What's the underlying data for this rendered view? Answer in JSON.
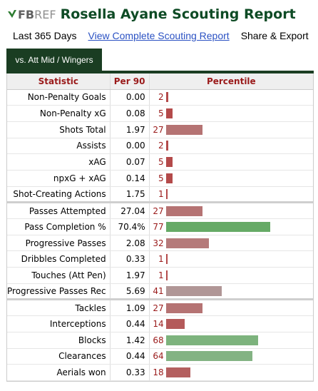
{
  "header": {
    "logo_fb": "FB",
    "logo_ref": "REF",
    "title": "Rosella Ayane Scouting Report"
  },
  "subnav": {
    "period": "Last 365 Days",
    "link": "View Complete Scouting Report",
    "share": "Share & Export"
  },
  "tab": {
    "label": "vs. Att Mid / Wingers"
  },
  "table": {
    "headers": {
      "statistic": "Statistic",
      "per90": "Per 90",
      "percentile": "Percentile"
    },
    "colors": {
      "high": "#7ab37a",
      "mid": "#b08a8a",
      "low": "#b05a5a"
    },
    "rows": [
      {
        "statistic": "Non-Penalty Goals",
        "per90": "0.00",
        "percentile": 2,
        "color": "#b44a4a",
        "group_end": false
      },
      {
        "statistic": "Non-Penalty xG",
        "per90": "0.08",
        "percentile": 5,
        "color": "#b44a4a",
        "group_end": false
      },
      {
        "statistic": "Shots Total",
        "per90": "1.97",
        "percentile": 27,
        "color": "#b57373",
        "group_end": false
      },
      {
        "statistic": "Assists",
        "per90": "0.00",
        "percentile": 2,
        "color": "#b44a4a",
        "group_end": false
      },
      {
        "statistic": "xAG",
        "per90": "0.07",
        "percentile": 5,
        "color": "#b44a4a",
        "group_end": false
      },
      {
        "statistic": "npxG + xAG",
        "per90": "0.14",
        "percentile": 5,
        "color": "#b44a4a",
        "group_end": false
      },
      {
        "statistic": "Shot-Creating Actions",
        "per90": "1.75",
        "percentile": 1,
        "color": "#b44a4a",
        "group_end": true
      },
      {
        "statistic": "Passes Attempted",
        "per90": "27.04",
        "percentile": 27,
        "color": "#b57373",
        "group_end": false
      },
      {
        "statistic": "Pass Completion %",
        "per90": "70.4%",
        "percentile": 77,
        "color": "#66aa66",
        "group_end": false
      },
      {
        "statistic": "Progressive Passes",
        "per90": "2.08",
        "percentile": 32,
        "color": "#b57a7a",
        "group_end": false
      },
      {
        "statistic": "Dribbles Completed",
        "per90": "0.33",
        "percentile": 1,
        "color": "#b44a4a",
        "group_end": false
      },
      {
        "statistic": "Touches (Att Pen)",
        "per90": "1.97",
        "percentile": 1,
        "color": "#b44a4a",
        "group_end": false
      },
      {
        "statistic": "Progressive Passes Rec",
        "per90": "5.69",
        "percentile": 41,
        "color": "#b09696",
        "group_end": true
      },
      {
        "statistic": "Tackles",
        "per90": "1.09",
        "percentile": 27,
        "color": "#b57373",
        "group_end": false
      },
      {
        "statistic": "Interceptions",
        "per90": "0.44",
        "percentile": 14,
        "color": "#b45a5a",
        "group_end": false
      },
      {
        "statistic": "Blocks",
        "per90": "1.42",
        "percentile": 68,
        "color": "#7db37d",
        "group_end": false
      },
      {
        "statistic": "Clearances",
        "per90": "0.44",
        "percentile": 64,
        "color": "#83b383",
        "group_end": false
      },
      {
        "statistic": "Aerials won",
        "per90": "0.33",
        "percentile": 18,
        "color": "#b45f5f",
        "group_end": false
      }
    ]
  }
}
